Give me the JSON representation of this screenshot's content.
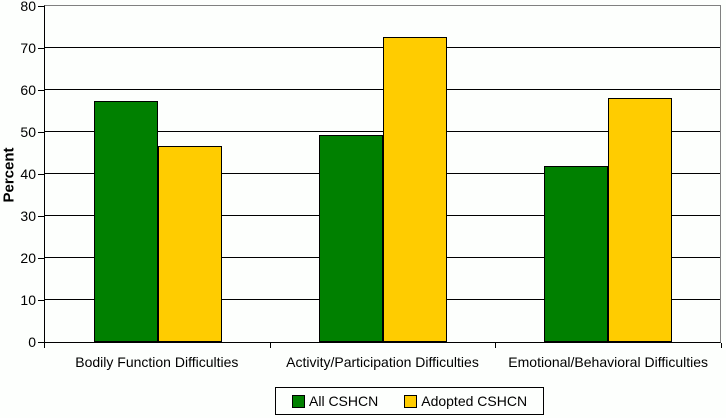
{
  "chart_data": {
    "type": "bar",
    "title": "",
    "xlabel": "",
    "ylabel": "Percent",
    "ylim": [
      0,
      80
    ],
    "ytick_step": 10,
    "yticks": [
      "0",
      "10",
      "20",
      "30",
      "40",
      "50",
      "60",
      "70",
      "80"
    ],
    "grid": "horizontal",
    "legend_position": "bottom",
    "categories": [
      "Bodily Function Difficulties",
      "Activity/Participation Difficulties",
      "Emotional/Behavioral Difficulties"
    ],
    "series": [
      {
        "name": "All CSHCN",
        "color": "#008000",
        "values": [
          57.3,
          49.3,
          42.0
        ]
      },
      {
        "name": "Adopted CSHCN",
        "color": "#FFCC00",
        "values": [
          46.6,
          72.6,
          58.2
        ]
      }
    ]
  },
  "colors": {
    "page_background": "#FDFFFD",
    "plot_background": "#FDFFFD",
    "gridline": "#000000",
    "axis": "#000000",
    "plot_border": "#808080",
    "bar_border": "#000000",
    "legend_border": "#000000",
    "text": "#000000"
  }
}
